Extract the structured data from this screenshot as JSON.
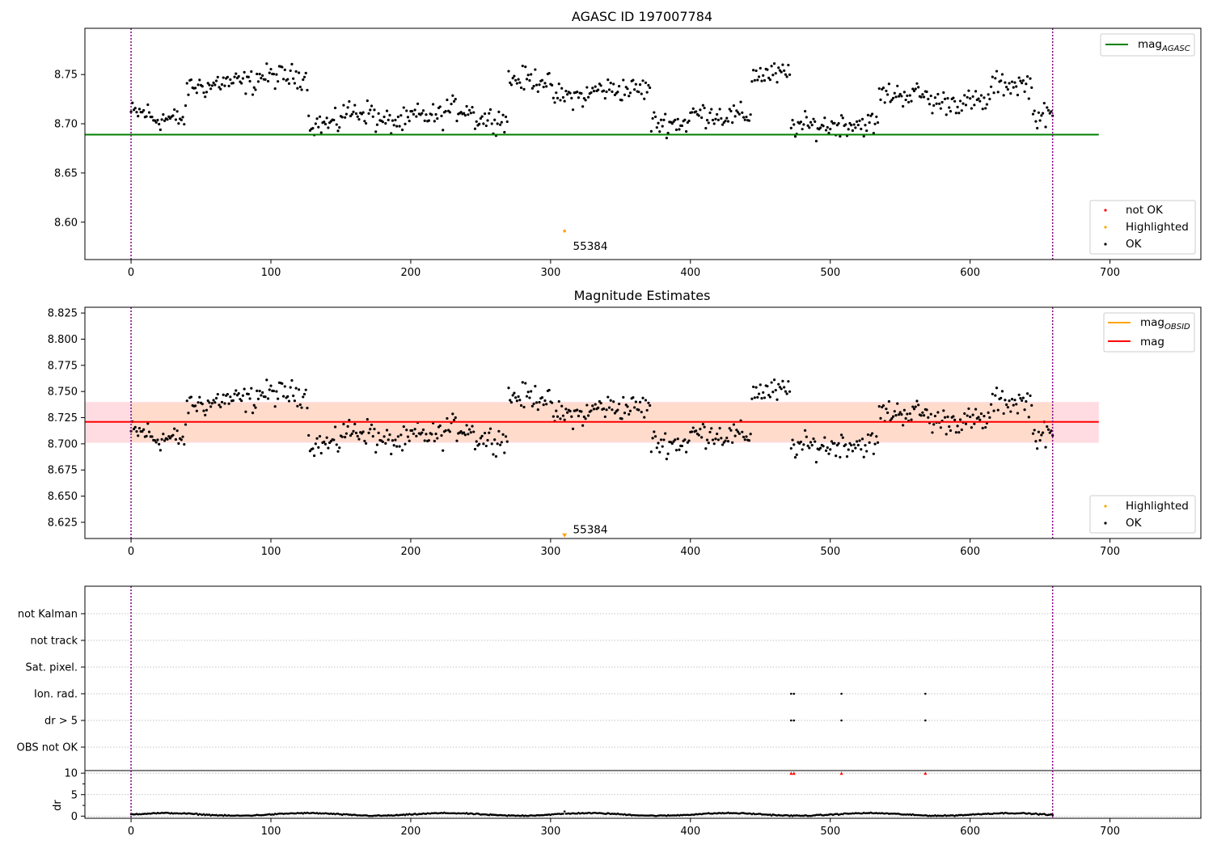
{
  "colors": {
    "ok": "#000000",
    "not_ok": "#ff0000",
    "highlighted": "#ffa500",
    "mag_agasc": "#008000",
    "mag_obsid": "#ffa500",
    "mag": "#ff0000",
    "band_outer": "#ffc0cb",
    "band_inner": "#ffdab9",
    "boundary": "#800080",
    "grid": "#b0b0b0"
  },
  "chart_data": [
    {
      "type": "scatter",
      "title": "AGASC ID 197007784",
      "xlim": [
        -33,
        765
      ],
      "ylim": [
        8.562,
        8.797
      ],
      "xticks": [
        0,
        100,
        200,
        300,
        400,
        500,
        600,
        700
      ],
      "yticks": [
        8.6,
        8.65,
        8.7,
        8.75
      ],
      "ytick_labels": [
        "8.60",
        "8.65",
        "8.70",
        "8.75"
      ],
      "vlines": [
        0,
        659
      ],
      "hlines": [
        {
          "name": "mag_AGASC",
          "y": 8.689,
          "x": [
            -33,
            692
          ]
        }
      ],
      "legend_lines": [
        {
          "label": "mag",
          "sub": "AGASC"
        }
      ],
      "legend_points": [
        "not OK",
        "Highlighted",
        "OK"
      ],
      "legend_placement": [
        "top-right",
        "bottom-right"
      ],
      "highlighted_point": {
        "x": 310,
        "y": 8.591,
        "marker": "dot"
      },
      "annotation": {
        "text": "55384",
        "x": 316,
        "y": 8.576
      },
      "ok_points": {
        "n": 660,
        "segments": [
          [
            0,
            14,
            8.711
          ],
          [
            14,
            40,
            8.705
          ],
          [
            40,
            60,
            8.738
          ],
          [
            60,
            90,
            8.742
          ],
          [
            90,
            127,
            8.748
          ],
          [
            127,
            150,
            8.7
          ],
          [
            150,
            175,
            8.712
          ],
          [
            175,
            200,
            8.702
          ],
          [
            200,
            225,
            8.708
          ],
          [
            225,
            245,
            8.715
          ],
          [
            245,
            270,
            8.705
          ],
          [
            270,
            300,
            8.745
          ],
          [
            300,
            330,
            8.728
          ],
          [
            330,
            372,
            8.735
          ],
          [
            372,
            400,
            8.701
          ],
          [
            400,
            420,
            8.71
          ],
          [
            420,
            444,
            8.708
          ],
          [
            444,
            472,
            8.75
          ],
          [
            472,
            505,
            8.698
          ],
          [
            505,
            535,
            8.7
          ],
          [
            535,
            570,
            8.73
          ],
          [
            570,
            615,
            8.722
          ],
          [
            615,
            645,
            8.74
          ],
          [
            645,
            660,
            8.708
          ]
        ]
      }
    },
    {
      "type": "scatter",
      "title": "Magnitude Estimates",
      "xlim": [
        -33,
        765
      ],
      "ylim": [
        8.6095,
        8.8305
      ],
      "xticks": [
        0,
        100,
        200,
        300,
        400,
        500,
        600,
        700
      ],
      "yticks": [
        8.625,
        8.65,
        8.675,
        8.7,
        8.725,
        8.75,
        8.775,
        8.8,
        8.825
      ],
      "ytick_labels": [
        "8.625",
        "8.650",
        "8.675",
        "8.700",
        "8.725",
        "8.750",
        "8.775",
        "8.800",
        "8.825"
      ],
      "vlines": [
        0,
        659
      ],
      "hlines": [
        {
          "name": "mag",
          "y": 8.721,
          "x": [
            -33,
            692
          ]
        }
      ],
      "bands": [
        {
          "y0": 8.701,
          "y1": 8.74,
          "x": [
            -33,
            692
          ],
          "color_key": "band_outer"
        },
        {
          "y0": 8.702,
          "y1": 8.739,
          "x": [
            0,
            659
          ],
          "color_key": "band_inner"
        }
      ],
      "legend_lines": [
        {
          "label": "mag",
          "sub": "OBSID"
        },
        {
          "label": "mag",
          "sub": ""
        }
      ],
      "legend_points": [
        "Highlighted",
        "OK"
      ],
      "legend_placement": [
        "top-right",
        "bottom-right"
      ],
      "highlighted_point": {
        "x": 310,
        "y": 8.612,
        "marker": "triangle-down"
      },
      "annotation": {
        "text": "55384",
        "x": 316,
        "y": 8.6185
      }
    },
    {
      "type": "scatter",
      "title": "",
      "xlim": [
        -33,
        765
      ],
      "xticks": [
        0,
        100,
        200,
        300,
        400,
        500,
        600,
        700
      ],
      "vlines": [
        0,
        659
      ],
      "flag_rows": [
        "not Kalman",
        "not track",
        "Sat. pixel.",
        "Ion. rad.",
        "dr > 5",
        "OBS not OK"
      ],
      "flag_points": [
        {
          "row": "Ion. rad.",
          "x": [
            472,
            474,
            508,
            568
          ]
        },
        {
          "row": "dr > 5",
          "x": [
            472,
            474,
            508,
            568
          ]
        }
      ],
      "dr": {
        "ylabel": "dr",
        "ylim": [
          -0.5,
          10.6
        ],
        "yticks": [
          0,
          5,
          10
        ],
        "ytick_labels": [
          "0",
          "5",
          "10"
        ],
        "clipped_markers_x": [
          472,
          474,
          508,
          568
        ],
        "baseline": 0.4,
        "spike": {
          "x": 310,
          "y": 1.1
        }
      }
    }
  ]
}
